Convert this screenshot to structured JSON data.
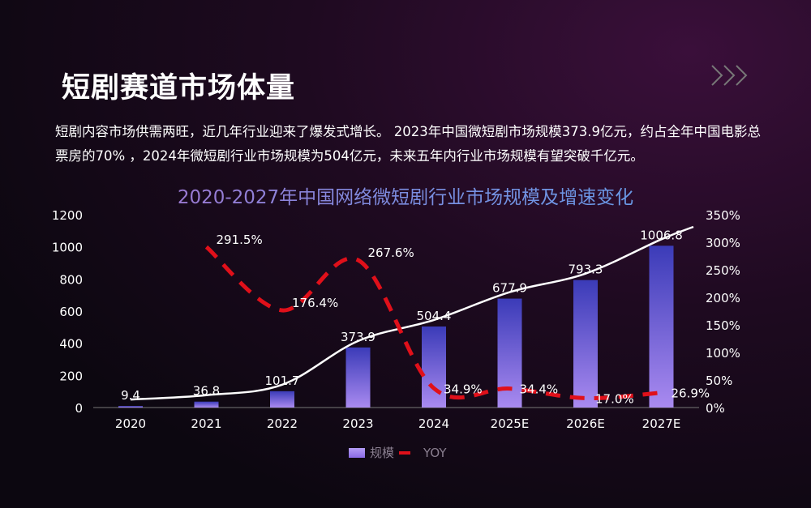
{
  "slide": {
    "title": "短剧赛道市场体量",
    "description": "短剧内容市场供需两旺，近几年行业迎来了爆发式增长。 2023年中国微短剧市场规模373.9亿元，约占全年中国电影总票房的70% ，2024年微短剧行业市场规模为504亿元，未来五年内行业市场规模有望突破千亿元。",
    "arrows_icon": "triple-chevron-right-icon"
  },
  "chart_data": {
    "type": "bar+line",
    "title": "2020-2027年中国网络微短剧行业市场规模及增速变化",
    "categories": [
      "2020",
      "2021",
      "2022",
      "2023",
      "2024",
      "2025E",
      "2026E",
      "2027E"
    ],
    "series": [
      {
        "name": "规模",
        "type": "bar",
        "axis": "left",
        "values": [
          9.4,
          36.8,
          101.7,
          373.9,
          504.4,
          677.9,
          793.3,
          1006.8
        ],
        "labels": [
          "9.4",
          "36.8",
          "101.7",
          "373.9",
          "504.4",
          "677.9",
          "793.3",
          "1006.8"
        ],
        "color": "#8a6ae6"
      },
      {
        "name": "YOY",
        "type": "line-dashed",
        "axis": "right",
        "values": [
          null,
          291.5,
          176.4,
          267.6,
          34.9,
          34.4,
          17.0,
          26.9
        ],
        "labels": [
          "",
          "291.5%",
          "176.4%",
          "267.6%",
          "34.9%",
          "34.4%",
          "17.0%",
          "26.9%"
        ],
        "color": "#e0101a"
      }
    ],
    "trend_line": {
      "color": "#ffffff"
    },
    "y_left": {
      "range": [
        0,
        1200
      ],
      "ticks": [
        "0",
        "200",
        "400",
        "600",
        "800",
        "1000",
        "1200"
      ]
    },
    "y_right": {
      "range": [
        0,
        350
      ],
      "ticks": [
        "0%",
        "50%",
        "100%",
        "150%",
        "200%",
        "250%",
        "300%",
        "350%"
      ]
    },
    "grid": false,
    "legend": {
      "position": "bottom",
      "items": [
        "规模",
        "YOY"
      ]
    }
  }
}
